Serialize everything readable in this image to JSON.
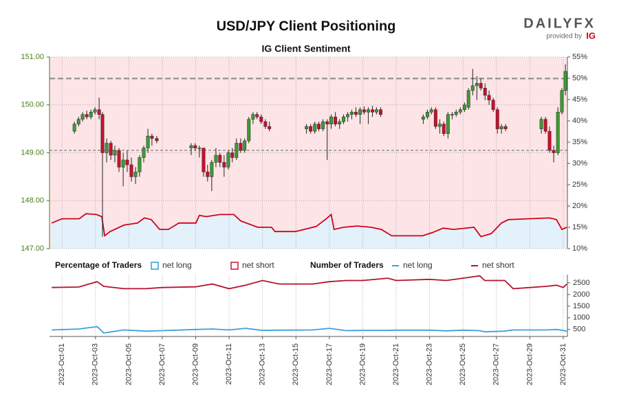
{
  "brand": {
    "name": "DAILYFX",
    "provided_by": "provided by",
    "logo": "IG"
  },
  "chart_data": [
    {
      "type": "candlestick",
      "title": "USD/JPY Client Positioning",
      "subtitle": "IG Client Sentiment",
      "up_color": "#3d9b35",
      "down_color": "#c8102e",
      "x": [
        1.74,
        1.99,
        2.23,
        2.48,
        2.73,
        2.97,
        3.22,
        3.42,
        3.67,
        3.92,
        4.16,
        4.41,
        4.66,
        4.9,
        5.15,
        5.4,
        5.64,
        5.89,
        6.14,
        6.38,
        6.67,
        8.73,
        8.97,
        9.22,
        9.47,
        9.71,
        9.96,
        10.21,
        10.45,
        10.7,
        10.95,
        11.19,
        11.44,
        11.69,
        11.93,
        12.18,
        12.43,
        12.67,
        12.92,
        13.17,
        13.41,
        15.63,
        15.88,
        16.13,
        16.37,
        16.62,
        16.87,
        17.11,
        17.36,
        17.61,
        17.85,
        18.1,
        18.34,
        18.59,
        18.84,
        19.08,
        19.33,
        19.58,
        19.82,
        20.07,
        22.62,
        22.87,
        23.11,
        23.36,
        23.61,
        23.85,
        24.1,
        24.35,
        24.59,
        24.84,
        25.09,
        25.33,
        25.58,
        25.83,
        26.07,
        26.32,
        26.56,
        26.81,
        27.06,
        27.3,
        27.55,
        29.69,
        29.94,
        30.18,
        30.43,
        30.68,
        30.92,
        31.13
      ],
      "open": [
        149.45,
        149.6,
        149.7,
        149.8,
        149.75,
        149.85,
        149.9,
        149.8,
        149.0,
        149.2,
        148.95,
        149.05,
        148.7,
        148.85,
        148.75,
        148.5,
        148.6,
        148.9,
        149.1,
        149.35,
        149.3,
        149.1,
        149.15,
        149.1,
        149.1,
        148.6,
        148.5,
        148.8,
        148.95,
        148.8,
        148.7,
        149.0,
        148.9,
        149.2,
        149.05,
        149.25,
        149.7,
        149.8,
        149.75,
        149.65,
        149.55,
        149.5,
        149.55,
        149.45,
        149.6,
        149.5,
        149.65,
        149.6,
        149.75,
        149.6,
        149.65,
        149.75,
        149.8,
        149.85,
        149.8,
        149.9,
        149.85,
        149.9,
        149.85,
        149.9,
        149.7,
        149.75,
        149.85,
        149.9,
        149.55,
        149.6,
        149.4,
        149.8,
        149.8,
        149.85,
        149.9,
        149.95,
        150.3,
        150.4,
        150.45,
        150.35,
        150.2,
        150.1,
        149.9,
        149.5,
        149.55,
        149.5,
        149.7,
        149.45,
        149.05,
        149.0,
        149.85,
        150.3
      ],
      "high": [
        149.65,
        149.75,
        149.85,
        149.88,
        149.9,
        149.95,
        150.15,
        149.85,
        149.3,
        149.25,
        149.15,
        149.1,
        149.0,
        149.05,
        148.9,
        148.7,
        148.95,
        149.15,
        149.5,
        149.4,
        149.35,
        149.2,
        149.2,
        149.15,
        149.1,
        148.75,
        148.85,
        149.1,
        149.0,
        148.95,
        149.05,
        149.1,
        149.3,
        149.3,
        149.3,
        149.75,
        149.85,
        149.85,
        149.8,
        149.7,
        149.65,
        149.6,
        149.6,
        149.65,
        149.65,
        149.7,
        149.7,
        149.8,
        149.85,
        149.7,
        149.8,
        149.85,
        149.9,
        149.95,
        149.95,
        149.97,
        149.95,
        149.98,
        149.95,
        149.95,
        149.8,
        149.9,
        149.95,
        149.95,
        149.7,
        149.65,
        149.85,
        149.85,
        149.9,
        149.95,
        150.05,
        150.35,
        150.75,
        150.6,
        150.55,
        150.45,
        150.3,
        150.15,
        149.95,
        149.6,
        149.6,
        149.75,
        149.75,
        149.55,
        149.15,
        149.95,
        150.35,
        150.85
      ],
      "low": [
        149.4,
        149.55,
        149.65,
        149.7,
        149.7,
        149.8,
        149.7,
        147.25,
        148.8,
        148.85,
        148.8,
        148.6,
        148.3,
        148.6,
        148.4,
        148.35,
        148.5,
        148.8,
        149.0,
        149.15,
        149.2,
        148.95,
        149.05,
        148.9,
        148.5,
        148.4,
        148.2,
        148.7,
        148.7,
        148.5,
        148.65,
        148.8,
        148.85,
        149.0,
        149.0,
        149.2,
        149.6,
        149.7,
        149.6,
        149.5,
        149.45,
        149.4,
        149.4,
        149.4,
        149.45,
        149.45,
        148.85,
        149.5,
        149.55,
        149.5,
        149.6,
        149.65,
        149.7,
        149.75,
        149.6,
        149.8,
        149.6,
        149.75,
        149.8,
        149.75,
        149.6,
        149.7,
        149.8,
        149.5,
        149.4,
        149.35,
        149.3,
        149.7,
        149.75,
        149.8,
        149.85,
        149.9,
        150.2,
        150.1,
        150.3,
        150.1,
        150.0,
        149.85,
        149.4,
        149.4,
        149.45,
        149.4,
        149.4,
        149.0,
        148.8,
        148.95,
        149.8,
        150.2
      ],
      "close": [
        149.6,
        149.7,
        149.8,
        149.75,
        149.85,
        149.9,
        149.8,
        149.0,
        149.2,
        148.95,
        149.05,
        148.7,
        148.85,
        148.75,
        148.5,
        148.6,
        148.9,
        149.1,
        149.35,
        149.3,
        149.25,
        149.15,
        149.1,
        149.1,
        148.6,
        148.5,
        148.8,
        148.95,
        148.8,
        148.7,
        149.0,
        148.9,
        149.2,
        149.05,
        149.25,
        149.7,
        149.8,
        149.75,
        149.65,
        149.55,
        149.5,
        149.55,
        149.45,
        149.6,
        149.5,
        149.65,
        149.6,
        149.75,
        149.6,
        149.65,
        149.75,
        149.8,
        149.85,
        149.8,
        149.9,
        149.85,
        149.9,
        149.85,
        149.9,
        149.8,
        149.75,
        149.85,
        149.9,
        149.55,
        149.6,
        149.4,
        149.8,
        149.8,
        149.85,
        149.9,
        150.0,
        150.3,
        150.4,
        150.45,
        150.35,
        150.2,
        150.1,
        149.9,
        149.5,
        149.55,
        149.5,
        149.7,
        149.45,
        149.05,
        149.0,
        149.85,
        150.3,
        150.7
      ],
      "xlim": [
        0.25,
        31.25
      ],
      "ylim": [
        147,
        151
      ],
      "yticks": [
        {
          "value": 147,
          "label": "147.00"
        },
        {
          "value": 148,
          "label": "148.00"
        },
        {
          "value": 149,
          "label": "149.00"
        },
        {
          "value": 150,
          "label": "150.00"
        },
        {
          "value": 151,
          "label": "151.00"
        }
      ],
      "y2lim": [
        10,
        55
      ],
      "y2ticks": [
        {
          "value": 10,
          "label": "10%"
        },
        {
          "value": 15,
          "label": "15%"
        },
        {
          "value": 20,
          "label": "20%"
        },
        {
          "value": 25,
          "label": "25%"
        },
        {
          "value": 30,
          "label": "30%"
        },
        {
          "value": 35,
          "label": "35%"
        },
        {
          "value": 40,
          "label": "40%"
        },
        {
          "value": 45,
          "label": "45%"
        },
        {
          "value": 50,
          "label": "50%"
        },
        {
          "value": 55,
          "label": "55%"
        }
      ],
      "reference_lines": [
        150.55,
        149.05
      ],
      "sentiment": {
        "legend_title": "Percentage of Traders",
        "axis": "y2",
        "line_color": "#d0021b",
        "x": [
          0.38,
          1.0,
          2.03,
          2.44,
          3.06,
          3.38,
          3.55,
          3.88,
          4.7,
          5.52,
          5.93,
          6.34,
          6.84,
          7.37,
          7.99,
          9.01,
          9.22,
          9.63,
          10.45,
          11.28,
          11.69,
          12.71,
          13.54,
          13.74,
          14.97,
          16.21,
          16.82,
          17.11,
          17.28,
          17.85,
          18.67,
          19.5,
          20.11,
          20.73,
          22.58,
          23.2,
          23.82,
          24.43,
          25.66,
          26.07,
          26.69,
          27.3,
          27.72,
          30.18,
          30.59,
          30.92,
          31.21
        ],
        "values": [
          16,
          17,
          17,
          18.2,
          18,
          17.5,
          13,
          14,
          15.5,
          16,
          17.2,
          16.8,
          14.5,
          14.5,
          16,
          16,
          17.8,
          17.5,
          18,
          18,
          16.5,
          15,
          15,
          14,
          14,
          15.2,
          17,
          18,
          14.5,
          15,
          15.3,
          15,
          14.5,
          13,
          13,
          13.8,
          14.8,
          14.5,
          15,
          12.8,
          13.5,
          16,
          16.8,
          17.2,
          16.8,
          14.5,
          15
        ],
        "long": {
          "name": "net long",
          "color": "#2d9fd9",
          "fill": "#e3f1fb"
        },
        "short": {
          "name": "net short",
          "color": "#c8102e",
          "fill": "#fde4e6"
        }
      }
    },
    {
      "type": "line",
      "legend_title": "Number of Traders",
      "x": [
        0.38,
        2,
        3.1,
        3.5,
        4.7,
        6,
        7,
        9,
        10,
        11,
        12,
        13,
        14,
        16,
        17,
        18,
        19,
        20.5,
        21,
        23,
        24,
        25,
        26,
        26.3,
        27.5,
        28,
        30,
        30.6,
        31,
        31.21
      ],
      "series": [
        {
          "name": "net long",
          "color": "#3b9fdc",
          "values": [
            480,
            520,
            620,
            350,
            480,
            430,
            450,
            500,
            520,
            480,
            550,
            460,
            470,
            480,
            550,
            450,
            460,
            460,
            470,
            470,
            440,
            470,
            450,
            400,
            430,
            480,
            480,
            500,
            460,
            420
          ]
        },
        {
          "name": "net short",
          "color": "#b5122c",
          "values": [
            2300,
            2320,
            2550,
            2350,
            2250,
            2250,
            2300,
            2330,
            2450,
            2250,
            2400,
            2600,
            2450,
            2450,
            2550,
            2600,
            2600,
            2700,
            2600,
            2650,
            2600,
            2700,
            2800,
            2600,
            2600,
            2250,
            2350,
            2400,
            2300,
            2450
          ]
        }
      ],
      "xlim": [
        0.25,
        31.25
      ],
      "xticks": [
        {
          "value": 1,
          "label": "2023-Oct-01"
        },
        {
          "value": 3,
          "label": "2023-Oct-03"
        },
        {
          "value": 5,
          "label": "2023-Oct-05"
        },
        {
          "value": 7,
          "label": "2023-Oct-07"
        },
        {
          "value": 9,
          "label": "2023-Oct-09"
        },
        {
          "value": 11,
          "label": "2023-Oct-11"
        },
        {
          "value": 13,
          "label": "2023-Oct-13"
        },
        {
          "value": 15,
          "label": "2023-Oct-15"
        },
        {
          "value": 17,
          "label": "2023-Oct-17"
        },
        {
          "value": 19,
          "label": "2023-Oct-19"
        },
        {
          "value": 21,
          "label": "2023-Oct-21"
        },
        {
          "value": 23,
          "label": "2023-Oct-23"
        },
        {
          "value": 25,
          "label": "2023-Oct-25"
        },
        {
          "value": 27,
          "label": "2023-Oct-27"
        },
        {
          "value": 29,
          "label": "2023-Oct-29"
        },
        {
          "value": 31,
          "label": "2023-Oct-31"
        }
      ],
      "ylim": [
        200,
        2850
      ],
      "yticks": [
        500,
        1000,
        1500,
        2000,
        2500
      ]
    }
  ]
}
